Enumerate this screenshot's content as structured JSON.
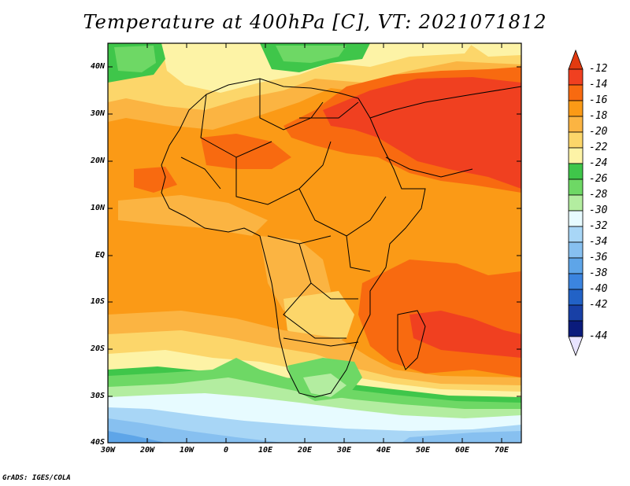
{
  "title": "Temperature at 400hPa [C], VT: 2021071812",
  "credit": "GrADS: IGES/COLA",
  "lat_labels": [
    "40N",
    "30N",
    "20N",
    "10N",
    "EQ",
    "10S",
    "20S",
    "30S",
    "40S"
  ],
  "lon_labels": [
    "30W",
    "20W",
    "10W",
    "0",
    "10E",
    "20E",
    "30E",
    "40E",
    "50E",
    "60E",
    "70E"
  ],
  "colorbar": {
    "labels": [
      "-12",
      "-14",
      "-16",
      "-18",
      "-20",
      "-22",
      "-24",
      "-26",
      "-28",
      "-30",
      "-32",
      "-34",
      "-36",
      "-38",
      "-40",
      "-42",
      "-44"
    ],
    "colors": [
      "#f04020",
      "#f86a10",
      "#fb9a16",
      "#fbb442",
      "#fcd66a",
      "#fdf3a6",
      "#3fc64a",
      "#6ed865",
      "#b3eda0",
      "#e7fbff",
      "#a8d6f6",
      "#87c0f0",
      "#5ea5e8",
      "#3b84df",
      "#2262c6",
      "#1840a6",
      "#0a1b7c"
    ],
    "top_arrow_color": "#e23a10",
    "bottom_arrow_color": "#e8e4ff"
  },
  "field_colors": {
    "c12": "#f04020",
    "c14": "#f86a10",
    "c16": "#fb9a16",
    "c18": "#fbb442",
    "c20": "#fcd66a",
    "c22": "#fdf3a6",
    "c24": "#3fc64a",
    "c26": "#6ed865",
    "c28": "#b3eda0",
    "c30": "#e7fbff",
    "c32": "#a8d6f6",
    "c34": "#87c0f0",
    "c36": "#5ea5e8"
  }
}
